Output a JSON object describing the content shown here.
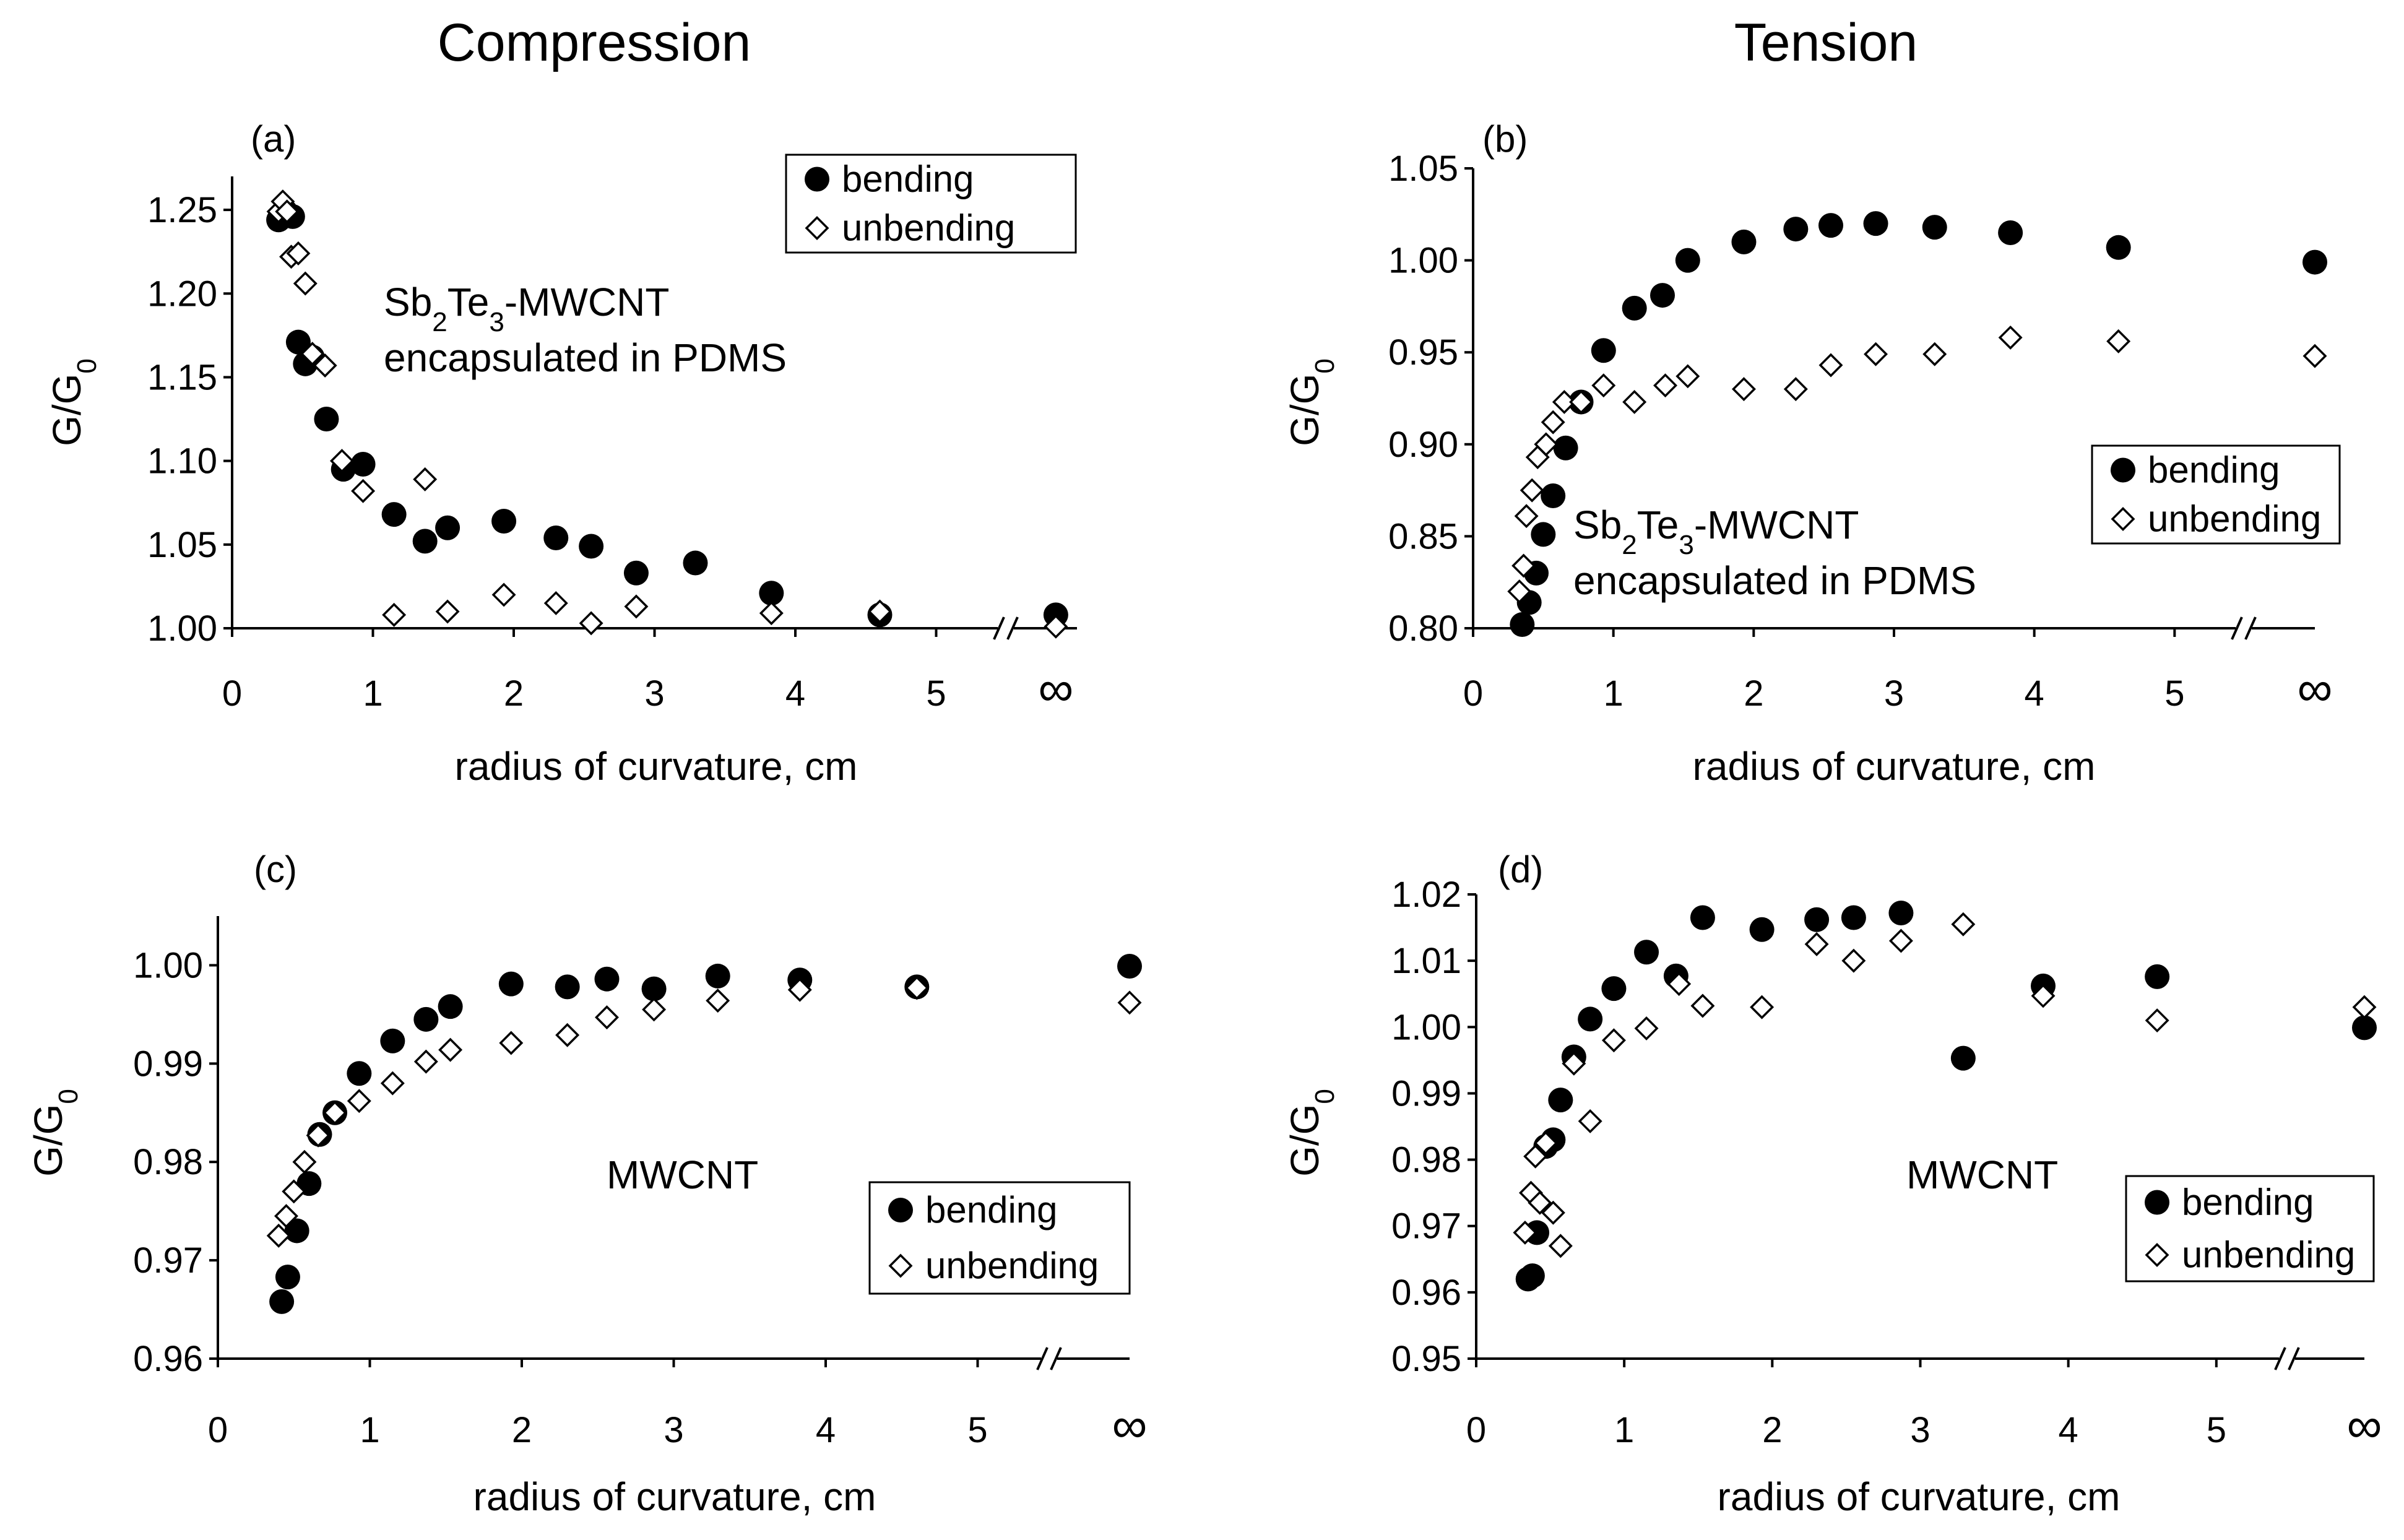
{
  "column_titles": {
    "left": "Compression",
    "right": "Tension"
  },
  "chart_data": [
    {
      "type": "scatter",
      "panel_label": "(a)",
      "xlabel": "radius of curvature, cm",
      "ylabel_main": "G/G",
      "ylabel_sub": "0",
      "xlim": [
        0,
        6
      ],
      "ylim": [
        1.0,
        1.27
      ],
      "xticks": [
        0,
        1,
        2,
        3,
        4,
        5
      ],
      "yticks": [
        "1.00",
        "1.05",
        "1.10",
        "1.15",
        "1.20",
        "1.25"
      ],
      "ytick_values": [
        1.0,
        1.05,
        1.1,
        1.15,
        1.2,
        1.25
      ],
      "infinity_label": "∞",
      "infinity_x": 5.85,
      "annotation": {
        "l1_pre": "Sb",
        "l1_sub1": "2",
        "l1_mid": "Te",
        "l1_sub2": "3",
        "l1_post": "-MWCNT",
        "l2": "encapsulated in PDMS"
      },
      "series": [
        {
          "name": "bending",
          "marker": "filled-circle",
          "x": [
            0.33,
            0.38,
            0.43,
            0.47,
            0.52,
            0.57,
            0.67,
            0.79,
            0.93,
            1.15,
            1.37,
            1.53,
            1.93,
            2.3,
            2.55,
            2.87,
            3.29,
            3.83,
            4.6,
            5.85
          ],
          "y": [
            1.244,
            1.249,
            1.246,
            1.171,
            1.158,
            1.162,
            1.125,
            1.095,
            1.098,
            1.068,
            1.052,
            1.06,
            1.064,
            1.054,
            1.049,
            1.033,
            1.039,
            1.021,
            1.008,
            1.008
          ]
        },
        {
          "name": "unbending",
          "marker": "open-diamond",
          "x": [
            0.33,
            0.36,
            0.39,
            0.42,
            0.47,
            0.52,
            0.57,
            0.66,
            0.78,
            0.93,
            1.15,
            1.37,
            1.53,
            1.93,
            2.3,
            2.55,
            2.87,
            3.83,
            4.6,
            5.85
          ],
          "y": [
            1.249,
            1.255,
            1.249,
            1.222,
            1.224,
            1.206,
            1.164,
            1.157,
            1.1,
            1.082,
            1.008,
            1.089,
            1.01,
            1.02,
            1.015,
            1.003,
            1.013,
            1.009,
            1.01,
            1.001
          ]
        }
      ],
      "legend": [
        "bending",
        "unbending"
      ]
    },
    {
      "type": "scatter",
      "panel_label": "(b)",
      "xlabel": "radius of curvature, cm",
      "ylabel_main": "G/G",
      "ylabel_sub": "0",
      "xlim": [
        0,
        6
      ],
      "ylim": [
        0.8,
        1.05
      ],
      "xticks": [
        0,
        1,
        2,
        3,
        4,
        5
      ],
      "yticks": [
        "0.80",
        "0.85",
        "0.90",
        "0.95",
        "1.00",
        "1.05"
      ],
      "ytick_values": [
        0.8,
        0.85,
        0.9,
        0.95,
        1.0,
        1.05
      ],
      "infinity_label": "∞",
      "infinity_x": 6.0,
      "annotation": {
        "l1_pre": "Sb",
        "l1_sub1": "2",
        "l1_mid": "Te",
        "l1_sub2": "3",
        "l1_post": "-MWCNT",
        "l2": "encapsulated in PDMS"
      },
      "series": [
        {
          "name": "bending",
          "marker": "filled-circle",
          "x": [
            0.35,
            0.4,
            0.45,
            0.5,
            0.57,
            0.66,
            0.77,
            0.93,
            1.15,
            1.35,
            1.53,
            1.93,
            2.3,
            2.55,
            2.87,
            3.29,
            3.83,
            4.6,
            6.0
          ],
          "y": [
            0.802,
            0.814,
            0.83,
            0.851,
            0.872,
            0.898,
            0.923,
            0.951,
            0.974,
            0.981,
            1.0,
            1.01,
            1.017,
            1.019,
            1.02,
            1.018,
            1.015,
            1.007,
            0.999
          ]
        },
        {
          "name": "unbending",
          "marker": "open-diamond",
          "x": [
            0.33,
            0.36,
            0.38,
            0.42,
            0.46,
            0.52,
            0.57,
            0.65,
            0.77,
            0.93,
            1.15,
            1.37,
            1.53,
            1.93,
            2.3,
            2.55,
            2.87,
            3.29,
            3.83,
            4.6,
            6.0
          ],
          "y": [
            0.82,
            0.834,
            0.861,
            0.875,
            0.893,
            0.9,
            0.912,
            0.923,
            0.923,
            0.932,
            0.923,
            0.932,
            0.937,
            0.93,
            0.93,
            0.943,
            0.949,
            0.949,
            0.958,
            0.956,
            0.948
          ]
        }
      ],
      "legend": [
        "bending",
        "unbending"
      ]
    },
    {
      "type": "scatter",
      "panel_label": "(c)",
      "xlabel": "radius of curvature, cm",
      "ylabel_main": "G/G",
      "ylabel_sub": "0",
      "xlim": [
        0,
        6
      ],
      "ylim": [
        0.96,
        1.005
      ],
      "xticks": [
        0,
        1,
        2,
        3,
        4,
        5
      ],
      "yticks": [
        "0.96",
        "0.97",
        "0.98",
        "0.99",
        "1.00"
      ],
      "ytick_values": [
        0.96,
        0.97,
        0.98,
        0.99,
        1.0
      ],
      "infinity_label": "∞",
      "infinity_x": 6.0,
      "annotation": {
        "text": "MWCNT"
      },
      "series": [
        {
          "name": "bending",
          "marker": "filled-circle",
          "x": [
            0.42,
            0.46,
            0.52,
            0.6,
            0.67,
            0.77,
            0.93,
            1.15,
            1.37,
            1.53,
            1.93,
            2.3,
            2.56,
            2.87,
            3.29,
            3.83,
            4.6,
            6.0
          ],
          "y": [
            0.9658,
            0.9683,
            0.973,
            0.9778,
            0.9828,
            0.985,
            0.989,
            0.9923,
            0.9945,
            0.9958,
            0.9981,
            0.9978,
            0.9986,
            0.9976,
            0.9989,
            0.9985,
            0.9978,
            0.9999
          ]
        },
        {
          "name": "unbending",
          "marker": "open-diamond",
          "x": [
            0.4,
            0.45,
            0.5,
            0.57,
            0.66,
            0.77,
            0.93,
            1.15,
            1.37,
            1.53,
            1.93,
            2.3,
            2.56,
            2.87,
            3.29,
            3.83,
            4.6,
            6.0
          ],
          "y": [
            0.9725,
            0.9745,
            0.977,
            0.98,
            0.9827,
            0.985,
            0.9862,
            0.988,
            0.9902,
            0.9914,
            0.9921,
            0.9929,
            0.9947,
            0.9955,
            0.9964,
            0.9975,
            0.9977,
            0.9962
          ]
        }
      ],
      "legend": [
        "bending",
        "unbending"
      ]
    },
    {
      "type": "scatter",
      "panel_label": "(d)",
      "xlabel": "radius of curvature, cm",
      "ylabel_main": "G/G",
      "ylabel_sub": "0",
      "xlim": [
        0,
        6
      ],
      "ylim": [
        0.95,
        1.02
      ],
      "xticks": [
        0,
        1,
        2,
        3,
        4,
        5
      ],
      "yticks": [
        "0.95",
        "0.96",
        "0.97",
        "0.98",
        "0.99",
        "1.00",
        "1.01",
        "1.02"
      ],
      "ytick_values": [
        0.95,
        0.96,
        0.97,
        0.98,
        0.99,
        1.0,
        1.01,
        1.02
      ],
      "infinity_label": "∞",
      "infinity_x": 6.0,
      "annotation": {
        "text": "MWCNT"
      },
      "series": [
        {
          "name": "bending",
          "marker": "filled-circle",
          "x": [
            0.35,
            0.38,
            0.41,
            0.47,
            0.52,
            0.57,
            0.66,
            0.77,
            0.93,
            1.15,
            1.35,
            1.53,
            1.93,
            2.3,
            2.55,
            2.87,
            3.29,
            3.83,
            4.6,
            6.0
          ],
          "y": [
            0.962,
            0.9625,
            0.969,
            0.982,
            0.983,
            0.989,
            0.9955,
            1.0012,
            1.0058,
            1.0113,
            1.0077,
            1.0165,
            1.0147,
            1.0162,
            1.0165,
            1.0172,
            0.9953,
            1.0062,
            1.0076,
            0.9999
          ]
        },
        {
          "name": "unbending",
          "marker": "open-diamond",
          "x": [
            0.33,
            0.37,
            0.4,
            0.43,
            0.47,
            0.52,
            0.57,
            0.66,
            0.77,
            0.93,
            1.15,
            1.37,
            1.53,
            1.93,
            2.3,
            2.55,
            2.87,
            3.29,
            3.83,
            4.6,
            6.0
          ],
          "y": [
            0.969,
            0.975,
            0.9805,
            0.9735,
            0.9825,
            0.972,
            0.967,
            0.9945,
            0.9858,
            0.998,
            0.9998,
            1.0065,
            1.0032,
            1.003,
            1.0125,
            1.01,
            1.013,
            1.0155,
            1.0047,
            1.001,
            1.003
          ]
        }
      ],
      "legend": [
        "bending",
        "unbending"
      ]
    }
  ]
}
